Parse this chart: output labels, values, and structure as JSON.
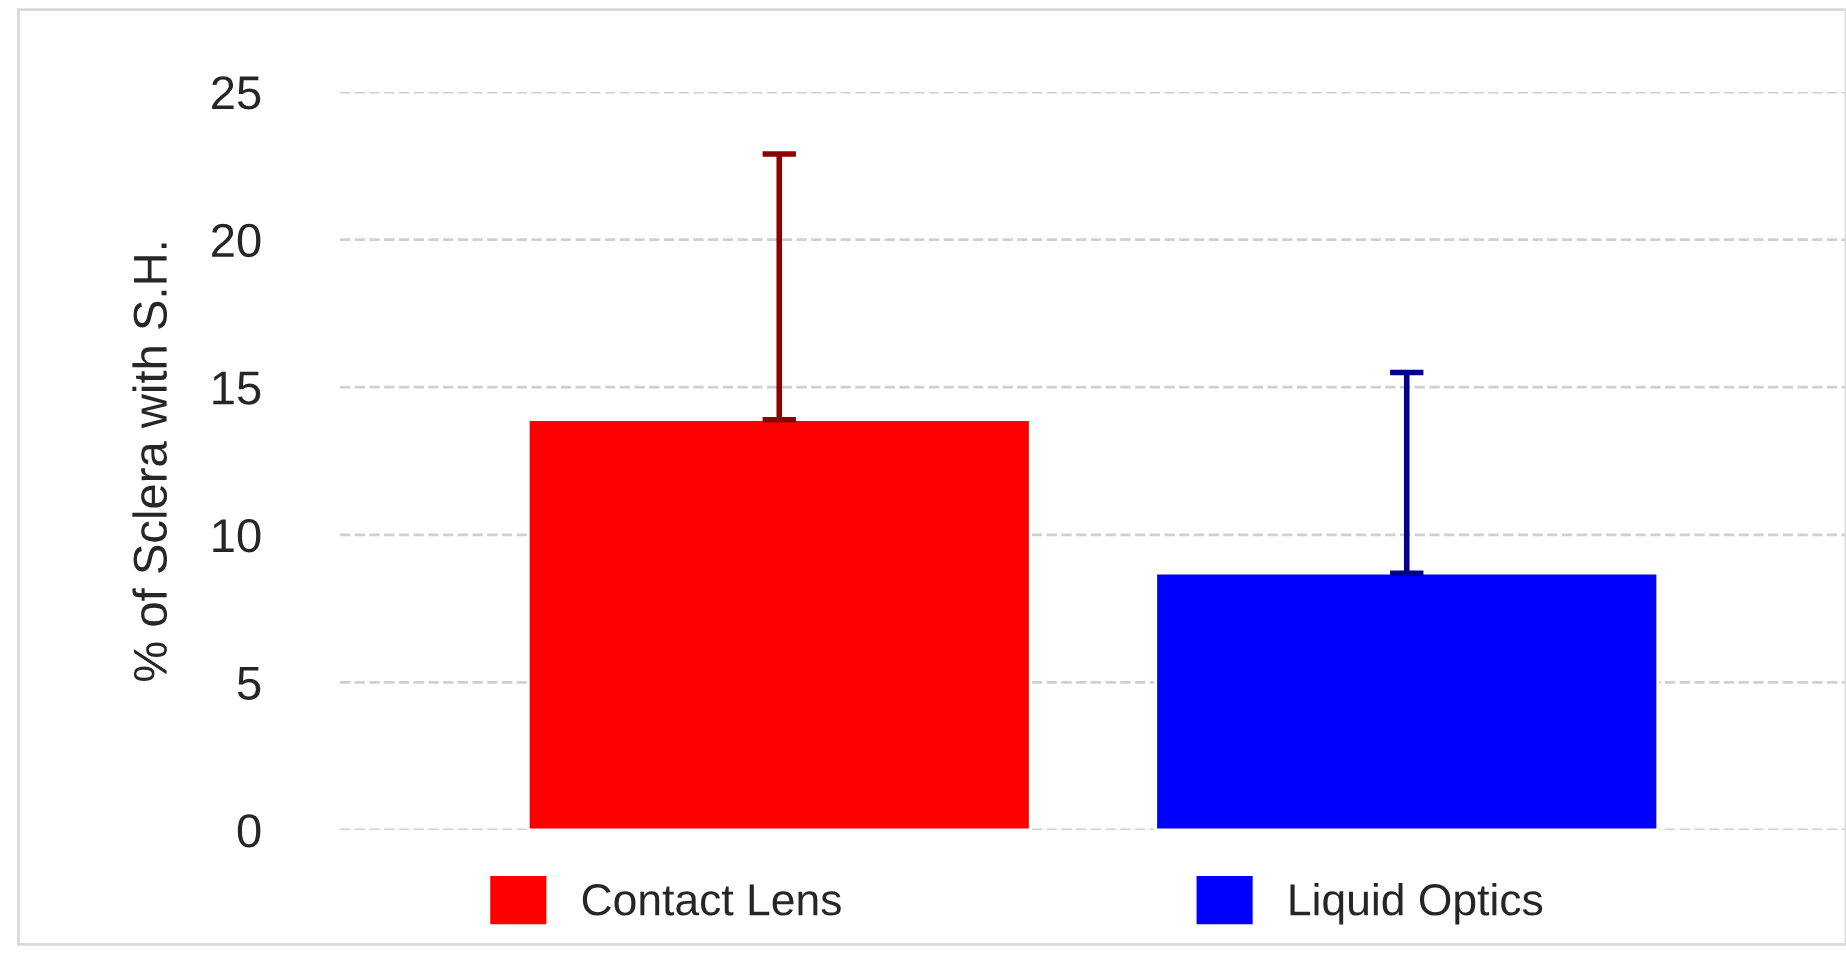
{
  "chart_data": {
    "type": "bar",
    "ylabel": "% of Sclera with S.H.",
    "categories": [
      null,
      null
    ],
    "series": [
      {
        "name": "Contact Lens",
        "color": "#ff0000",
        "values": [
          13.9,
          null
        ],
        "errors": [
          [
            13.9,
            22.9
          ],
          null
        ]
      },
      {
        "name": "Liquid Optics",
        "color": "#0000ff",
        "values": [
          null,
          8.7
        ],
        "errors": [
          null,
          [
            8.7,
            15.5
          ]
        ]
      }
    ],
    "ylim": [
      0,
      25
    ],
    "yticks": [
      0,
      5,
      10,
      15,
      20,
      25
    ],
    "grid": "y",
    "legend": "bottom"
  }
}
